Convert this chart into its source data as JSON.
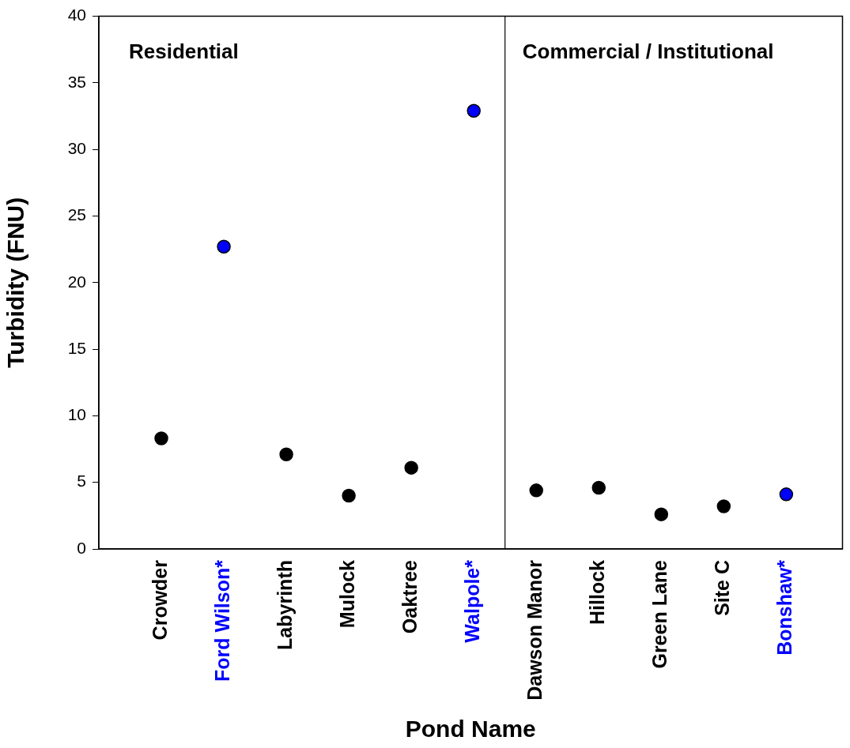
{
  "chart_data": {
    "type": "scatter",
    "xlabel": "Pond Name",
    "ylabel": "Turbidity (FNU)",
    "categories": [
      "Crowder",
      "Ford Wilson*",
      "Labyrinth",
      "Mulock",
      "Oaktree",
      "Walpole*",
      "Dawson Manor",
      "Hillock",
      "Green Lane",
      "Site C",
      "Bonshaw*"
    ],
    "values": [
      8.3,
      22.7,
      7.1,
      4.0,
      6.1,
      32.9,
      4.4,
      4.6,
      2.6,
      3.2,
      4.1
    ],
    "colors": [
      "#000000",
      "#0000ff",
      "#000000",
      "#000000",
      "#000000",
      "#0000ff",
      "#000000",
      "#000000",
      "#000000",
      "#000000",
      "#0000ff"
    ],
    "ylim": [
      0,
      40
    ],
    "yticks": [
      0,
      5,
      10,
      15,
      20,
      25,
      30,
      35,
      40
    ],
    "annotations": [
      "Residential",
      "Commercial / Institutional"
    ],
    "grid": false,
    "legend": false,
    "marker": "circle"
  }
}
